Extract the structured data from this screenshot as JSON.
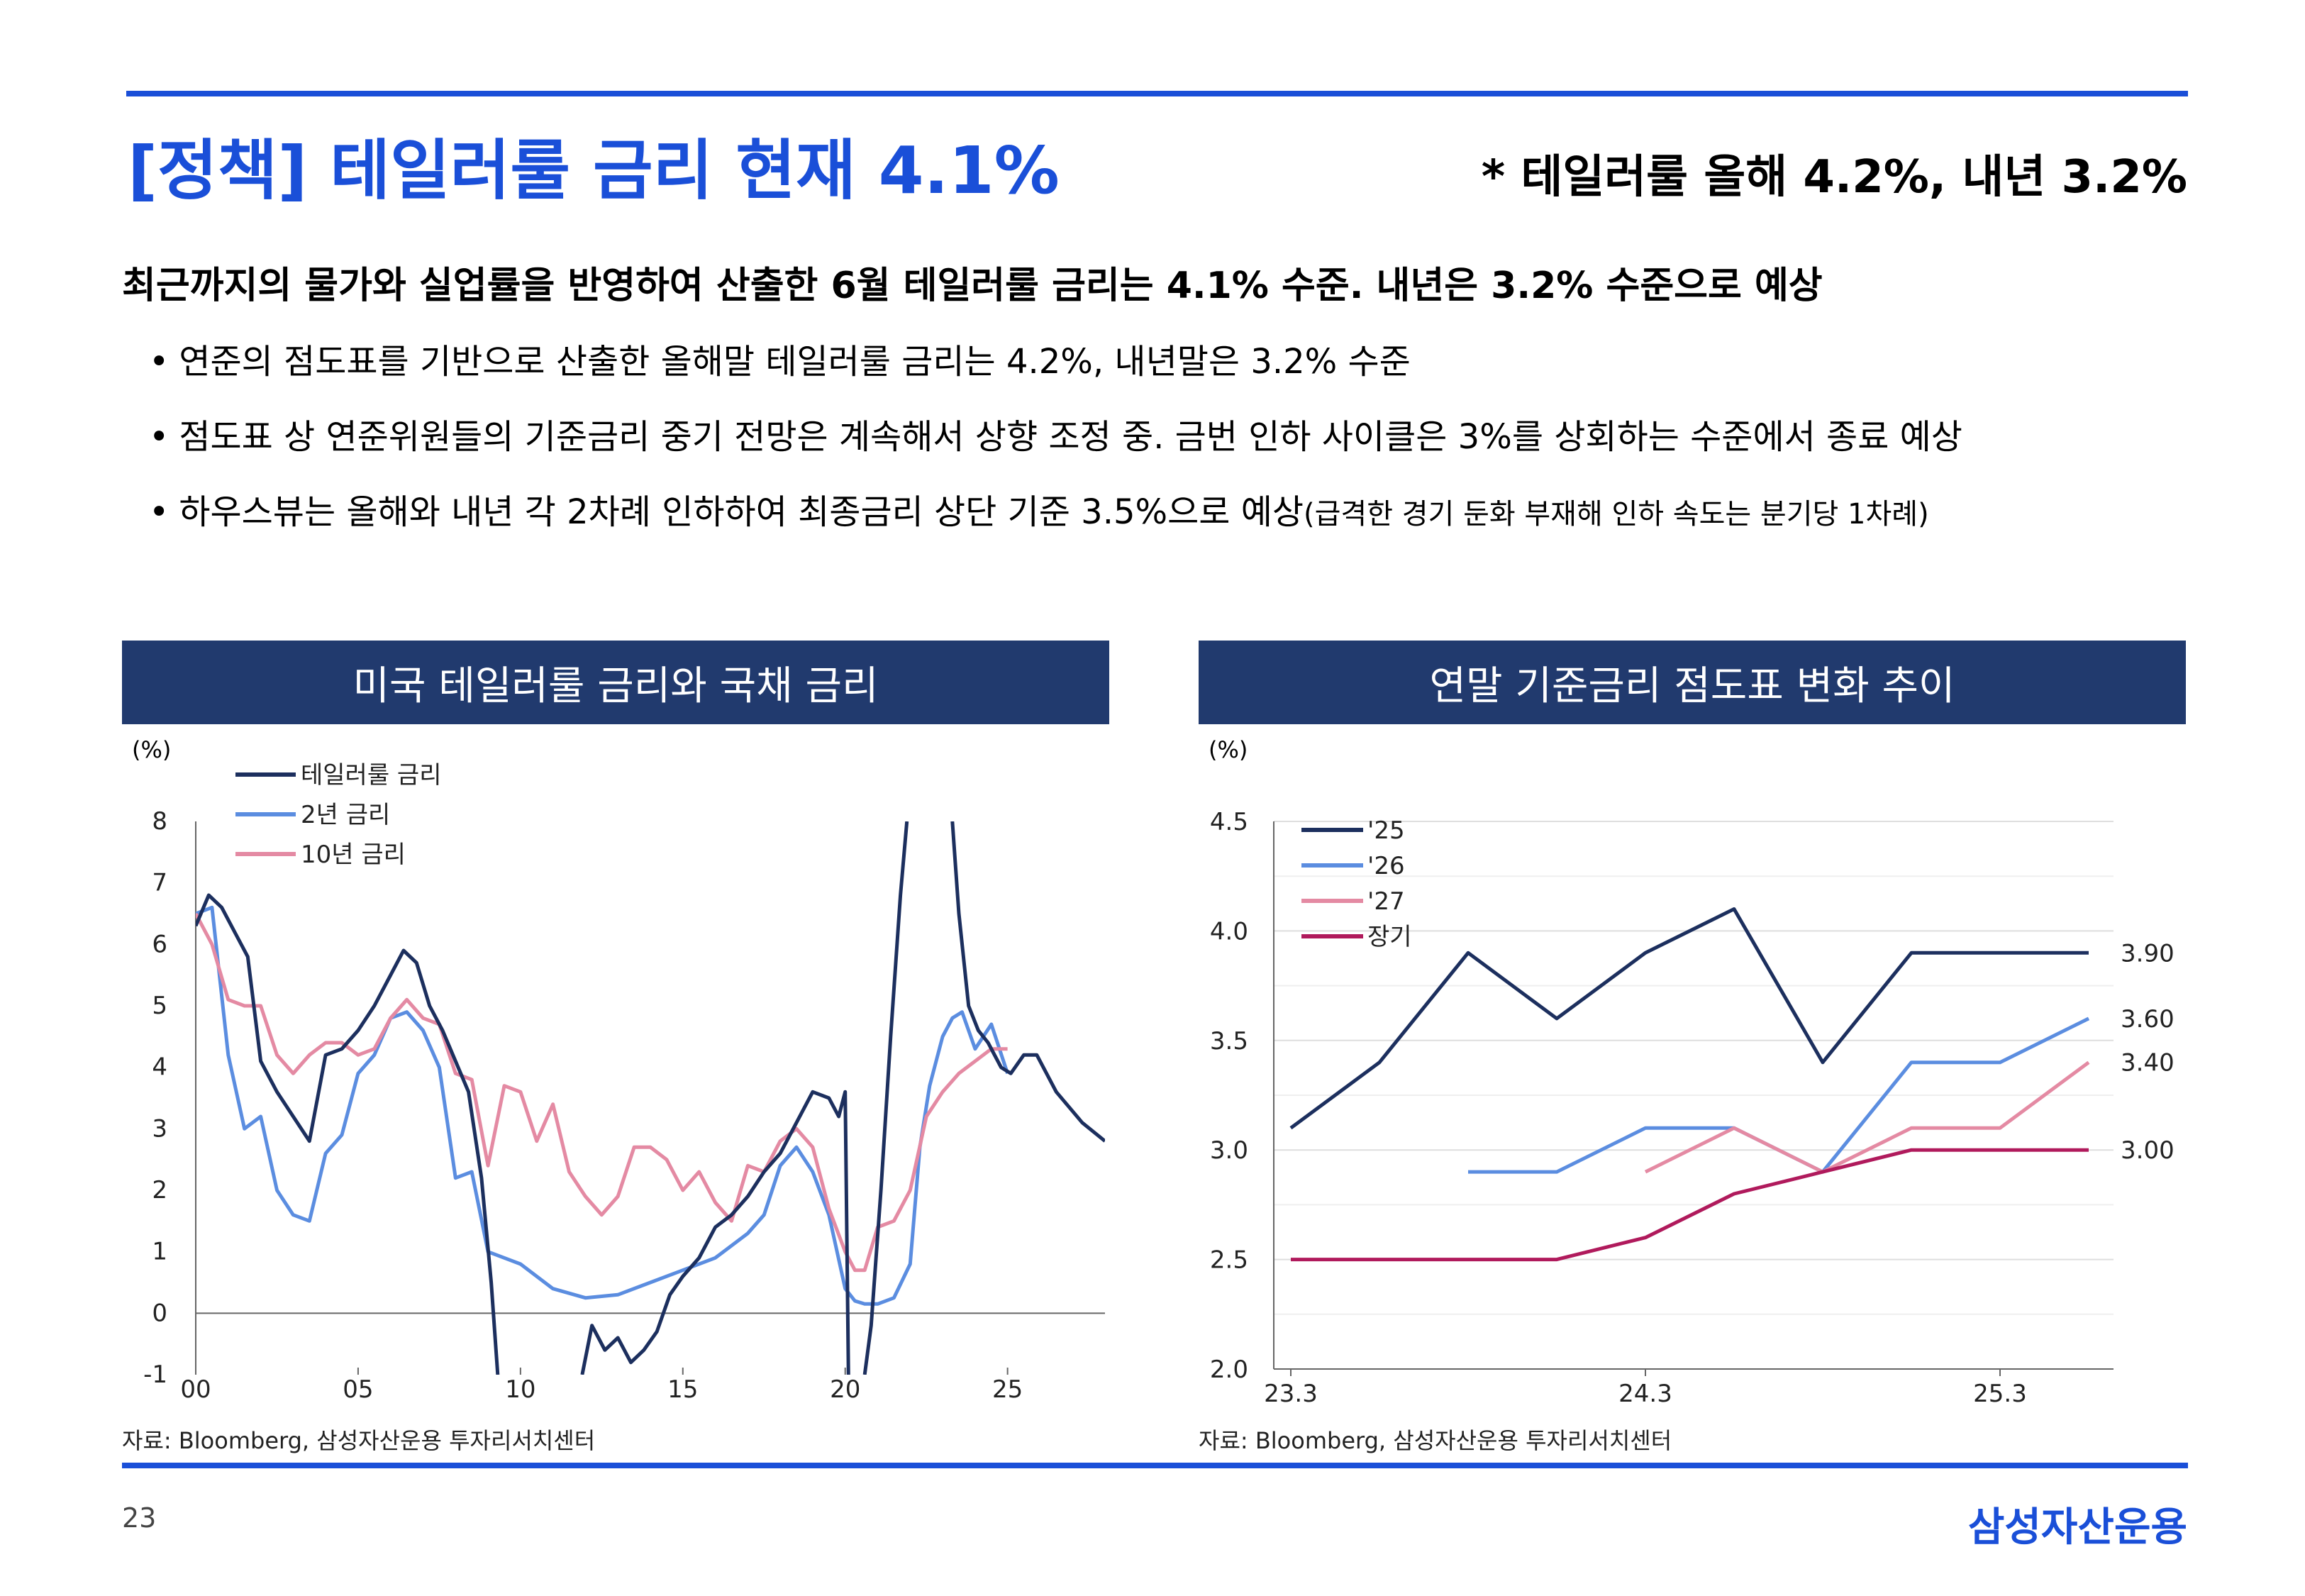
{
  "header": {
    "title": "[정책] 테일러룰 금리 현재 4.1%",
    "side_note": "* 테일러룰 올해 4.2%, 내년 3.2%"
  },
  "summary": {
    "lead": "최근까지의 물가와 실업률을 반영하여 산출한 6월 테일러룰 금리는 4.1% 수준. 내년은 3.2% 수준으로 예상",
    "bullet_mark": "•",
    "bullets": [
      {
        "text": "연준의 점도표를 기반으로 산출한 올해말 테일러룰 금리는 4.2%, 내년말은 3.2% 수준",
        "note": ""
      },
      {
        "text": "점도표 상 연준위원들의 기준금리 중기 전망은 계속해서 상향 조정 중. 금번 인하 사이클은 3%를 상회하는 수준에서 종료 예상",
        "note": ""
      },
      {
        "text": "하우스뷰는 올해와 내년 각 2차례 인하하여 최종금리 상단 기준 3.5%으로 예상",
        "note": "(급격한 경기 둔화 부재해 인하 속도는 분기당 1차례)"
      }
    ]
  },
  "footer": {
    "page_number": "23",
    "brand": "삼성자산운용"
  },
  "chart_data": [
    {
      "type": "line",
      "title": "미국 테일러룰 금리와 국채 금리",
      "unit_label": "(%)",
      "xlim": [
        2000,
        2028
      ],
      "ylim": [
        -1,
        8
      ],
      "x_ticks": [
        2000,
        2005,
        2010,
        2015,
        2020,
        2025
      ],
      "x_tick_labels": [
        "00",
        "05",
        "10",
        "15",
        "20",
        "25"
      ],
      "y_ticks": [
        -1,
        0,
        1,
        2,
        3,
        4,
        5,
        6,
        7,
        8
      ],
      "y_tick_labels": [
        "-1",
        "0",
        "1",
        "2",
        "3",
        "4",
        "5",
        "6",
        "7",
        "8"
      ],
      "legend_position": "top-left",
      "source": "자료: Bloomberg, 삼성자산운용 투자리서치센터",
      "series": [
        {
          "name": "테일러룰 금리",
          "color": "#1c2f5e",
          "x": [
            2000,
            2000.4,
            2000.8,
            2001.2,
            2001.6,
            2002,
            2002.5,
            2003,
            2003.5,
            2004,
            2004.5,
            2005,
            2005.5,
            2006,
            2006.4,
            2006.8,
            2007.2,
            2007.6,
            2008,
            2008.4,
            2008.8,
            2009.1,
            2009.3
          ],
          "y": [
            6.3,
            6.8,
            6.6,
            6.2,
            5.8,
            4.1,
            3.6,
            3.2,
            2.8,
            4.2,
            4.3,
            4.6,
            5.0,
            5.5,
            5.9,
            5.7,
            5.0,
            4.6,
            4.1,
            3.6,
            2.2,
            0.5,
            -1
          ]
        },
        {
          "name": "테일러룰 금리",
          "color": "#1c2f5e",
          "x": [
            2011.9,
            2012.2,
            2012.6,
            2013,
            2013.4,
            2013.8,
            2014.2,
            2014.6,
            2015,
            2015.5,
            2016,
            2016.5,
            2017,
            2017.5,
            2018,
            2018.5,
            2019,
            2019.5,
            2019.8,
            2020,
            2020.1
          ],
          "y": [
            -1,
            -0.2,
            -0.6,
            -0.4,
            -0.8,
            -0.6,
            -0.3,
            0.3,
            0.6,
            0.9,
            1.4,
            1.6,
            1.9,
            2.3,
            2.6,
            3.1,
            3.6,
            3.5,
            3.2,
            3.6,
            -1
          ]
        },
        {
          "name": "테일러룰 금리",
          "color": "#1c2f5e",
          "x": [
            2020.6,
            2020.8,
            2021.1,
            2021.4,
            2021.7,
            2021.9
          ],
          "y": [
            -1,
            -0.2,
            2.0,
            4.5,
            6.8,
            8
          ]
        },
        {
          "name": "테일러룰 금리",
          "color": "#1c2f5e",
          "x": [
            2023.3,
            2023.5,
            2023.8,
            2024.1,
            2024.4,
            2024.8,
            2025.1,
            2025.5,
            2025.9,
            2026.5,
            2027.3,
            2028
          ],
          "y": [
            8,
            6.5,
            5.0,
            4.6,
            4.4,
            4.0,
            3.9,
            4.2,
            4.2,
            3.6,
            3.1,
            2.8
          ]
        },
        {
          "name": "2년 금리",
          "color": "#5b8de0",
          "x": [
            2000,
            2000.5,
            2001,
            2001.5,
            2002,
            2002.5,
            2003,
            2003.5,
            2004,
            2004.5,
            2005,
            2005.5,
            2006,
            2006.5,
            2007,
            2007.5,
            2008,
            2008.5,
            2009,
            2010,
            2011,
            2012,
            2013,
            2014,
            2015,
            2016,
            2017,
            2017.5,
            2018,
            2018.5,
            2019,
            2019.5,
            2020,
            2020.3,
            2020.6,
            2021,
            2021.5,
            2022,
            2022.3,
            2022.6,
            2023,
            2023.3,
            2023.6,
            2024,
            2024.5,
            2025
          ],
          "y": [
            6.5,
            6.6,
            4.2,
            3.0,
            3.2,
            2.0,
            1.6,
            1.5,
            2.6,
            2.9,
            3.9,
            4.2,
            4.8,
            4.9,
            4.6,
            4.0,
            2.2,
            2.3,
            1.0,
            0.8,
            0.4,
            0.25,
            0.3,
            0.5,
            0.7,
            0.9,
            1.3,
            1.6,
            2.4,
            2.7,
            2.3,
            1.6,
            0.4,
            0.2,
            0.15,
            0.15,
            0.25,
            0.8,
            2.7,
            3.7,
            4.5,
            4.8,
            4.9,
            4.3,
            4.7,
            3.9
          ]
        },
        {
          "name": "10년 금리",
          "color": "#e48aa3",
          "x": [
            2000,
            2000.5,
            2001,
            2001.5,
            2002,
            2002.5,
            2003,
            2003.5,
            2004,
            2004.5,
            2005,
            2005.5,
            2006,
            2006.5,
            2007,
            2007.5,
            2008,
            2008.5,
            2009,
            2009.5,
            2010,
            2010.5,
            2011,
            2011.5,
            2012,
            2012.5,
            2013,
            2013.5,
            2014,
            2014.5,
            2015,
            2015.5,
            2016,
            2016.5,
            2017,
            2017.5,
            2018,
            2018.5,
            2019,
            2019.5,
            2020,
            2020.3,
            2020.6,
            2021,
            2021.5,
            2022,
            2022.5,
            2023,
            2023.5,
            2024,
            2024.5,
            2025
          ],
          "y": [
            6.5,
            6.0,
            5.1,
            5.0,
            5.0,
            4.2,
            3.9,
            4.2,
            4.4,
            4.4,
            4.2,
            4.3,
            4.8,
            5.1,
            4.8,
            4.7,
            3.9,
            3.8,
            2.4,
            3.7,
            3.6,
            2.8,
            3.4,
            2.3,
            1.9,
            1.6,
            1.9,
            2.7,
            2.7,
            2.5,
            2.0,
            2.3,
            1.8,
            1.5,
            2.4,
            2.3,
            2.8,
            3.0,
            2.7,
            1.7,
            1.0,
            0.7,
            0.7,
            1.4,
            1.5,
            2.0,
            3.2,
            3.6,
            3.9,
            4.1,
            4.3,
            4.3
          ]
        }
      ]
    },
    {
      "type": "line",
      "title": "연말 기준금리 점도표 변화 추이",
      "unit_label": "(%)",
      "categories": [
        "23.3",
        "23.6",
        "23.9",
        "23.12",
        "24.3",
        "24.6",
        "24.9",
        "24.12",
        "25.3",
        "25.6"
      ],
      "x_tick_labels": [
        "23.3",
        "24.3",
        "25.3"
      ],
      "ylim": [
        2.0,
        4.5
      ],
      "y_ticks": [
        2.0,
        2.5,
        3.0,
        3.5,
        4.0,
        4.5
      ],
      "y_tick_labels": [
        "2.0",
        "2.5",
        "3.0",
        "3.5",
        "4.0",
        "4.5"
      ],
      "legend_position": "top-left",
      "source": "자료: Bloomberg, 삼성자산운용 투자리서치센터",
      "end_labels": [
        "3.90",
        "3.60",
        "3.40",
        "3.00"
      ],
      "series": [
        {
          "name": "'25",
          "color": "#1c2f5e",
          "values": [
            3.1,
            3.4,
            3.9,
            3.6,
            3.9,
            4.1,
            3.4,
            3.9,
            3.9,
            3.9
          ]
        },
        {
          "name": "'26",
          "color": "#5b8de0",
          "values": [
            null,
            null,
            2.9,
            2.9,
            3.1,
            3.1,
            2.9,
            3.4,
            3.4,
            3.6
          ]
        },
        {
          "name": "'27",
          "color": "#e48aa3",
          "values": [
            null,
            null,
            null,
            null,
            2.9,
            3.1,
            2.9,
            3.1,
            3.1,
            3.4
          ]
        },
        {
          "name": "장기",
          "color": "#b01a5c",
          "values": [
            2.5,
            2.5,
            2.5,
            2.5,
            2.6,
            2.8,
            2.9,
            3.0,
            3.0,
            3.0
          ]
        }
      ]
    }
  ]
}
